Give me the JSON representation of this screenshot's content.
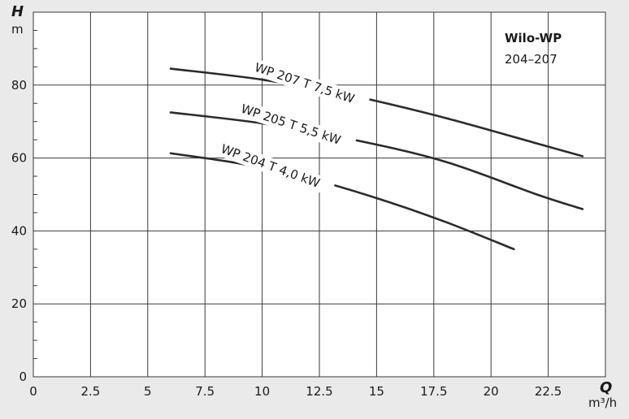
{
  "chart_data": {
    "type": "line",
    "title": "Wilo-WP",
    "subtitle": "204–207",
    "ylabel": "H",
    "yunit": "m",
    "xlabel": "Q",
    "xunit": "m³/h",
    "xlim": [
      0,
      25
    ],
    "ylim": [
      0,
      100
    ],
    "xticks": [
      "0",
      "2.5",
      "5",
      "7.5",
      "10",
      "12.5",
      "15",
      "17.5",
      "20",
      "22.5"
    ],
    "yticks": [
      "0",
      "20",
      "40",
      "60",
      "80"
    ],
    "grid": true,
    "colors": {
      "background": "#eaeaea",
      "plot": "#ffffff",
      "line": "#2b2b2b",
      "grid": "#3a3a3a"
    },
    "series": [
      {
        "name": "WP 207 T 7,5 kW",
        "x": [
          6,
          10,
          14,
          18,
          22,
          24
        ],
        "y": [
          84.5,
          81.5,
          77,
          71,
          64,
          60.5
        ]
      },
      {
        "name": "WP 205 T 5,5 kW",
        "x": [
          6,
          10,
          14,
          18,
          22,
          24
        ],
        "y": [
          72.5,
          69.5,
          65,
          59,
          50,
          46
        ]
      },
      {
        "name": "WP 204 T 4,0 kW",
        "x": [
          6,
          9,
          12,
          15,
          18,
          21
        ],
        "y": [
          61.3,
          58.5,
          54.5,
          49,
          42.5,
          35
        ]
      }
    ]
  }
}
